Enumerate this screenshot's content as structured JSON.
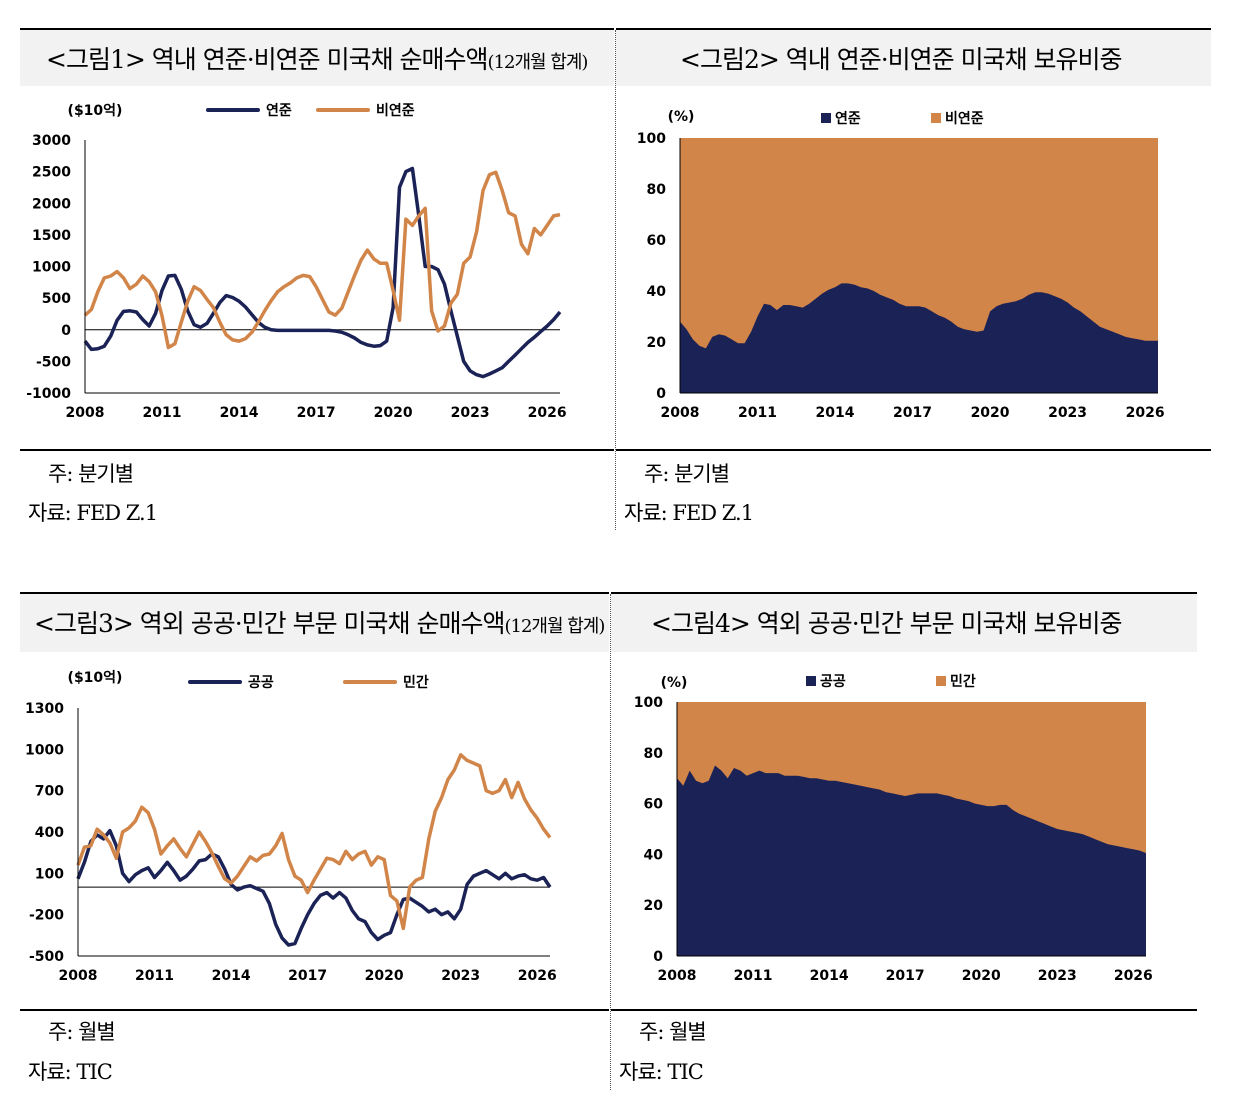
{
  "colors": {
    "navy": "#1b2256",
    "orange": "#d28549",
    "title_bg": "#f2f2f2"
  },
  "fig1": {
    "title": "<그림1> 역내 연준·비연준 미국채 순매수액",
    "title_suffix": "(12개월 합계)",
    "note": "주: 분기별",
    "source": "자료: FED Z.1"
  },
  "fig2": {
    "title": "<그림2> 역내 연준·비연준 미국채 보유비중",
    "note": "주: 분기별",
    "source": "자료: FED Z.1"
  },
  "fig3": {
    "title": "<그림3> 역외 공공·민간 부문 미국채 순매수액",
    "title_suffix": "(12개월 합계)",
    "note": "주: 월별",
    "source": "자료: TIC"
  },
  "fig4": {
    "title": "<그림4> 역외 공공·민간 부문 미국채 보유비중",
    "note": "주: 월별",
    "source": "자료: TIC"
  },
  "chart_data": [
    {
      "type": "line",
      "unit_label": "($10억)",
      "xlim": [
        2008,
        2026.5
      ],
      "xticks": [
        2008,
        2011,
        2014,
        2017,
        2020,
        2023,
        2026
      ],
      "ylim": [
        -1000,
        3000
      ],
      "yticks": [
        3000,
        2500,
        2000,
        1500,
        1000,
        500,
        0,
        -500,
        -1000
      ],
      "legend_position": "top-center",
      "x": [
        2008.0,
        2008.25,
        2008.5,
        2008.75,
        2009.0,
        2009.25,
        2009.5,
        2009.75,
        2010.0,
        2010.25,
        2010.5,
        2010.75,
        2011.0,
        2011.25,
        2011.5,
        2011.75,
        2012.0,
        2012.25,
        2012.5,
        2012.75,
        2013.0,
        2013.25,
        2013.5,
        2013.75,
        2014.0,
        2014.25,
        2014.5,
        2014.75,
        2015.0,
        2015.25,
        2015.5,
        2015.75,
        2016.0,
        2016.25,
        2016.5,
        2016.75,
        2017.0,
        2017.25,
        2017.5,
        2017.75,
        2018.0,
        2018.25,
        2018.5,
        2018.75,
        2019.0,
        2019.25,
        2019.5,
        2019.75,
        2020.0,
        2020.25,
        2020.5,
        2020.75,
        2021.0,
        2021.25,
        2021.5,
        2021.75,
        2022.0,
        2022.25,
        2022.5,
        2022.75,
        2023.0,
        2023.25,
        2023.5,
        2023.75,
        2024.0,
        2024.25,
        2024.5,
        2024.75,
        2025.0,
        2025.25,
        2025.5,
        2025.75,
        2026.0,
        2026.25,
        2026.5
      ],
      "series": [
        {
          "name": "연준",
          "color": "navy",
          "values": [
            -180,
            -310,
            -300,
            -260,
            -100,
            150,
            290,
            300,
            280,
            160,
            60,
            260,
            620,
            850,
            860,
            640,
            300,
            80,
            40,
            100,
            260,
            430,
            540,
            510,
            450,
            360,
            240,
            120,
            40,
            0,
            -10,
            -10,
            -10,
            -10,
            -10,
            -10,
            -10,
            -10,
            -10,
            -20,
            -40,
            -80,
            -130,
            -200,
            -240,
            -260,
            -250,
            -180,
            350,
            2250,
            2500,
            2550,
            1800,
            1000,
            1000,
            950,
            720,
            300,
            -100,
            -500,
            -650,
            -710,
            -740,
            -700,
            -650,
            -600,
            -500,
            -400,
            -300,
            -200,
            -120,
            -30,
            60,
            160,
            280
          ]
        },
        {
          "name": "비연준",
          "color": "orange",
          "values": [
            230,
            320,
            600,
            820,
            850,
            920,
            820,
            650,
            720,
            850,
            760,
            600,
            220,
            -280,
            -220,
            120,
            450,
            680,
            620,
            480,
            350,
            120,
            -80,
            -160,
            -180,
            -140,
            -40,
            120,
            300,
            460,
            600,
            680,
            740,
            820,
            860,
            840,
            680,
            480,
            280,
            230,
            340,
            600,
            860,
            1100,
            1260,
            1120,
            1050,
            1050,
            620,
            150,
            1750,
            1650,
            1800,
            1920,
            300,
            -20,
            60,
            420,
            560,
            1050,
            1150,
            1550,
            2200,
            2450,
            2490,
            2200,
            1850,
            1800,
            1350,
            1200,
            1600,
            1500,
            1650,
            1800,
            1820
          ]
        }
      ]
    },
    {
      "type": "area",
      "unit_label": "(%)",
      "stacked": true,
      "xlim": [
        2008,
        2026.5
      ],
      "xticks": [
        2008,
        2011,
        2014,
        2017,
        2020,
        2023,
        2026
      ],
      "ylim": [
        0,
        100
      ],
      "yticks": [
        100,
        80,
        60,
        40,
        20,
        0
      ],
      "legend_position": "top-center",
      "x": [
        2008.0,
        2008.25,
        2008.5,
        2008.75,
        2009.0,
        2009.25,
        2009.5,
        2009.75,
        2010.0,
        2010.25,
        2010.5,
        2010.75,
        2011.0,
        2011.25,
        2011.5,
        2011.75,
        2012.0,
        2012.25,
        2012.5,
        2012.75,
        2013.0,
        2013.25,
        2013.5,
        2013.75,
        2014.0,
        2014.25,
        2014.5,
        2014.75,
        2015.0,
        2015.25,
        2015.5,
        2015.75,
        2016.0,
        2016.25,
        2016.5,
        2016.75,
        2017.0,
        2017.25,
        2017.5,
        2017.75,
        2018.0,
        2018.25,
        2018.5,
        2018.75,
        2019.0,
        2019.25,
        2019.5,
        2019.75,
        2020.0,
        2020.25,
        2020.5,
        2020.75,
        2021.0,
        2021.25,
        2021.5,
        2021.75,
        2022.0,
        2022.25,
        2022.5,
        2022.75,
        2023.0,
        2023.25,
        2023.5,
        2023.75,
        2024.0,
        2024.25,
        2024.5,
        2024.75,
        2025.0,
        2025.25,
        2025.5,
        2025.75,
        2026.0,
        2026.25,
        2026.5
      ],
      "series": [
        {
          "name": "연준",
          "color": "navy",
          "values": [
            28,
            25,
            21,
            18.5,
            17.5,
            22,
            23,
            22.5,
            21,
            19.5,
            19.5,
            24,
            30,
            35,
            34.5,
            32.5,
            34.5,
            34.5,
            34,
            33.5,
            35,
            37,
            39,
            40.5,
            41.5,
            43,
            43,
            42.5,
            41.5,
            41,
            40,
            38.5,
            37.5,
            36.5,
            35,
            34,
            34,
            34,
            33.5,
            32,
            30.5,
            29.5,
            28,
            26,
            25,
            24.5,
            24,
            24.5,
            32,
            34,
            35,
            35.5,
            36,
            37,
            38.5,
            39.5,
            39.5,
            39,
            38,
            37,
            35.5,
            33.5,
            32,
            30,
            28,
            26,
            25,
            24,
            23,
            22,
            21.5,
            21,
            20.5,
            20.5,
            20.5
          ]
        },
        {
          "name": "비연준",
          "color": "orange",
          "values": [
            72,
            75,
            79,
            81.5,
            82.5,
            78,
            77,
            77.5,
            79,
            80.5,
            80.5,
            76,
            70,
            65,
            65.5,
            67.5,
            65.5,
            65.5,
            66,
            66.5,
            65,
            63,
            61,
            59.5,
            58.5,
            57,
            57,
            57.5,
            58.5,
            59,
            60,
            61.5,
            62.5,
            63.5,
            65,
            66,
            66,
            66,
            66.5,
            68,
            69.5,
            70.5,
            72,
            74,
            75,
            75.5,
            76,
            75.5,
            68,
            66,
            65,
            64.5,
            64,
            63,
            61.5,
            60.5,
            60.5,
            61,
            62,
            63,
            64.5,
            66.5,
            68,
            70,
            72,
            74,
            75,
            76,
            77,
            78,
            78.5,
            79,
            79.5,
            79.5,
            79.5
          ]
        }
      ]
    },
    {
      "type": "line",
      "unit_label": "($10억)",
      "xlim": [
        2008,
        2026.5
      ],
      "xticks": [
        2008,
        2011,
        2014,
        2017,
        2020,
        2023,
        2026
      ],
      "ylim": [
        -500,
        1300
      ],
      "yticks": [
        1300,
        1000,
        700,
        400,
        100,
        -200,
        -500
      ],
      "legend_position": "top-center",
      "x": [
        2008.0,
        2008.25,
        2008.5,
        2008.75,
        2009.0,
        2009.25,
        2009.5,
        2009.75,
        2010.0,
        2010.25,
        2010.5,
        2010.75,
        2011.0,
        2011.25,
        2011.5,
        2011.75,
        2012.0,
        2012.25,
        2012.5,
        2012.75,
        2013.0,
        2013.25,
        2013.5,
        2013.75,
        2014.0,
        2014.25,
        2014.5,
        2014.75,
        2015.0,
        2015.25,
        2015.5,
        2015.75,
        2016.0,
        2016.25,
        2016.5,
        2016.75,
        2017.0,
        2017.25,
        2017.5,
        2017.75,
        2018.0,
        2018.25,
        2018.5,
        2018.75,
        2019.0,
        2019.25,
        2019.5,
        2019.75,
        2020.0,
        2020.25,
        2020.5,
        2020.75,
        2021.0,
        2021.25,
        2021.5,
        2021.75,
        2022.0,
        2022.25,
        2022.5,
        2022.75,
        2023.0,
        2023.25,
        2023.5,
        2023.75,
        2024.0,
        2024.25,
        2024.5,
        2024.75,
        2025.0,
        2025.25,
        2025.5,
        2025.75,
        2026.0,
        2026.25,
        2026.5
      ],
      "series": [
        {
          "name": "공공",
          "color": "navy",
          "values": [
            60,
            180,
            330,
            380,
            350,
            410,
            300,
            100,
            40,
            90,
            120,
            140,
            70,
            120,
            180,
            120,
            50,
            80,
            130,
            190,
            200,
            240,
            220,
            130,
            20,
            -20,
            0,
            10,
            -10,
            -30,
            -120,
            -270,
            -370,
            -420,
            -410,
            -300,
            -200,
            -120,
            -60,
            -40,
            -80,
            -40,
            -80,
            -170,
            -230,
            -250,
            -330,
            -380,
            -350,
            -330,
            -200,
            -90,
            -80,
            -110,
            -140,
            -180,
            -160,
            -200,
            -180,
            -230,
            -160,
            20,
            80,
            100,
            120,
            90,
            60,
            100,
            60,
            80,
            90,
            60,
            50,
            70,
            0
          ]
        },
        {
          "name": "민간",
          "color": "orange",
          "values": [
            160,
            290,
            300,
            420,
            380,
            320,
            210,
            400,
            430,
            480,
            580,
            540,
            420,
            240,
            300,
            350,
            280,
            220,
            310,
            400,
            330,
            250,
            150,
            60,
            30,
            80,
            150,
            220,
            190,
            230,
            240,
            300,
            390,
            200,
            80,
            50,
            -40,
            50,
            130,
            210,
            200,
            170,
            260,
            200,
            240,
            260,
            160,
            220,
            200,
            -60,
            -100,
            -300,
            0,
            50,
            70,
            350,
            550,
            650,
            780,
            850,
            960,
            920,
            900,
            880,
            700,
            680,
            700,
            780,
            650,
            760,
            640,
            560,
            500,
            420,
            360
          ]
        }
      ]
    },
    {
      "type": "area",
      "unit_label": "(%)",
      "stacked": true,
      "xlim": [
        2008,
        2026.5
      ],
      "xticks": [
        2008,
        2011,
        2014,
        2017,
        2020,
        2023,
        2026
      ],
      "ylim": [
        0,
        100
      ],
      "yticks": [
        100,
        80,
        60,
        40,
        20,
        0
      ],
      "legend_position": "top-center",
      "x": [
        2008.0,
        2008.25,
        2008.5,
        2008.75,
        2009.0,
        2009.25,
        2009.5,
        2009.75,
        2010.0,
        2010.25,
        2010.5,
        2010.75,
        2011.0,
        2011.25,
        2011.5,
        2011.75,
        2012.0,
        2012.25,
        2012.5,
        2012.75,
        2013.0,
        2013.25,
        2013.5,
        2013.75,
        2014.0,
        2014.25,
        2014.5,
        2014.75,
        2015.0,
        2015.25,
        2015.5,
        2015.75,
        2016.0,
        2016.25,
        2016.5,
        2016.75,
        2017.0,
        2017.25,
        2017.5,
        2017.75,
        2018.0,
        2018.25,
        2018.5,
        2018.75,
        2019.0,
        2019.25,
        2019.5,
        2019.75,
        2020.0,
        2020.25,
        2020.5,
        2020.75,
        2021.0,
        2021.25,
        2021.5,
        2021.75,
        2022.0,
        2022.25,
        2022.5,
        2022.75,
        2023.0,
        2023.25,
        2023.5,
        2023.75,
        2024.0,
        2024.25,
        2024.5,
        2024.75,
        2025.0,
        2025.25,
        2025.5,
        2025.75,
        2026.0,
        2026.25,
        2026.5
      ],
      "series": [
        {
          "name": "공공",
          "color": "navy",
          "values": [
            70,
            67,
            73,
            69,
            68,
            69,
            75,
            73,
            70,
            74,
            73,
            71,
            72,
            73,
            72,
            72,
            72,
            71,
            71,
            71,
            70.5,
            70,
            70,
            69.5,
            69,
            69,
            68.5,
            68,
            67.5,
            67,
            66.5,
            66,
            65.5,
            64.5,
            64,
            63.5,
            63,
            63.5,
            64,
            64,
            64,
            64,
            63.5,
            63,
            62,
            61.5,
            61,
            60,
            59.5,
            59,
            59,
            59.5,
            59.5,
            57.5,
            56,
            55,
            54,
            53,
            52,
            51,
            50,
            49.5,
            49,
            48.5,
            48,
            47,
            46,
            45,
            44,
            43.5,
            43,
            42.5,
            42,
            41.5,
            40.5
          ]
        },
        {
          "name": "민간",
          "color": "orange",
          "values": [
            30,
            33,
            27,
            31,
            32,
            31,
            25,
            27,
            30,
            26,
            27,
            29,
            28,
            27,
            28,
            28,
            28,
            29,
            29,
            29,
            29.5,
            30,
            30,
            30.5,
            31,
            31,
            31.5,
            32,
            32.5,
            33,
            33.5,
            34,
            34.5,
            35.5,
            36,
            36.5,
            37,
            36.5,
            36,
            36,
            36,
            36,
            36.5,
            37,
            38,
            38.5,
            39,
            40,
            40.5,
            41,
            41,
            40.5,
            40.5,
            42.5,
            44,
            45,
            46,
            47,
            48,
            49,
            50,
            50.5,
            51,
            51.5,
            52,
            53,
            54,
            55,
            56,
            56.5,
            57,
            57.5,
            58,
            58.5,
            59.5
          ]
        }
      ]
    }
  ]
}
